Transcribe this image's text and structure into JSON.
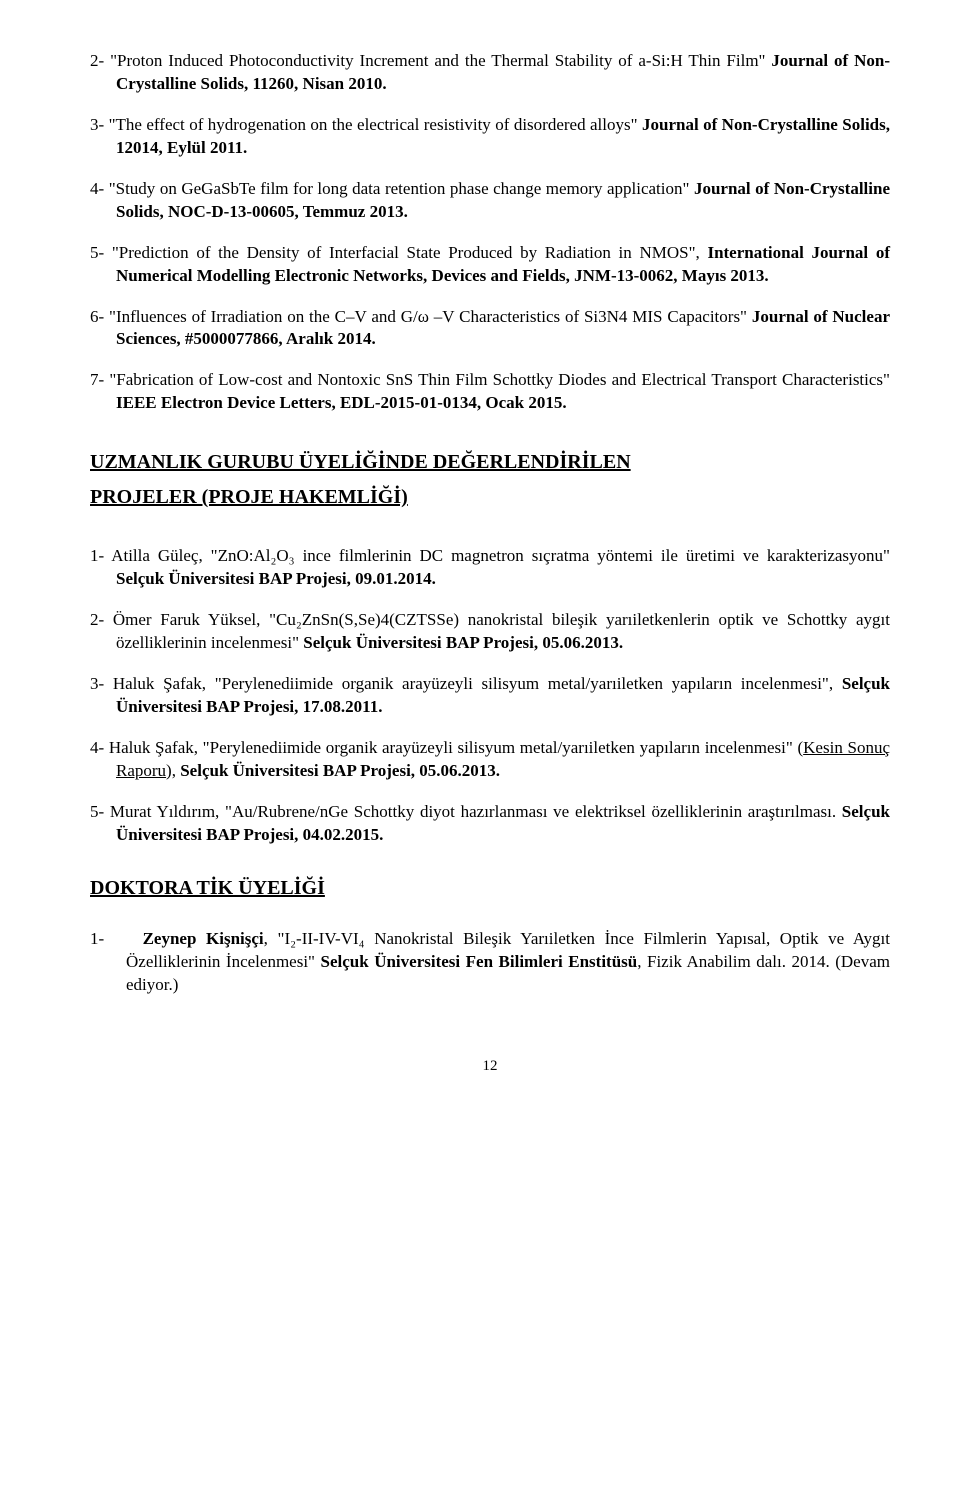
{
  "review_entries": [
    {
      "num": "2-",
      "pre": "\"Proton Induced Photoconductivity Increment and the Thermal Stability of a-Si:H Thin Film\" ",
      "bold": "Journal of Non-Crystalline Solids, 11260, Nisan 2010.",
      "post": ""
    },
    {
      "num": "3-",
      "pre": "\"The effect of hydrogenation on the electrical resistivity of disordered alloys\" ",
      "bold": "Journal of Non-Crystalline Solids, 12014, Eylül 2011.",
      "post": ""
    },
    {
      "num": "4-",
      "pre": "\"Study on GeGaSbTe film for long data retention phase change memory application\" ",
      "bold": "Journal of Non-Crystalline Solids, NOC-D-13-00605, Temmuz 2013.",
      "post": ""
    },
    {
      "num": "5-",
      "pre": "\"Prediction of the Density of Interfacial State Produced by Radiation in NMOS\", ",
      "bold": "International Journal of Numerical Modelling Electronic Networks, Devices and Fields, JNM-13-0062, Mayıs 2013.",
      "post": ""
    },
    {
      "num": "6-",
      "pre": "\"Influences of Irradiation on the C–V and G/ω –V Characteristics of Si3N4 MIS Capacitors\" ",
      "bold": "Journal of Nuclear Sciences, #5000077866, Aralık 2014.",
      "post": ""
    },
    {
      "num": "7-",
      "pre": "\"Fabrication of Low-cost and Nontoxic SnS Thin Film Schottky Diodes and Electrical Transport Characteristics\" ",
      "bold": "IEEE Electron Device Letters, EDL-2015-01-0134, Ocak 2015.",
      "post": ""
    }
  ],
  "heading1_line1": "UZMANLIK GURUBU ÜYELİĞİNDE DEĞERLENDİRİLEN",
  "heading1_line2": "PROJELER (PROJE  HAKEMLİĞİ)",
  "project_entries": [
    {
      "num": "1-",
      "pre": "Atilla Güleç, \"ZnO:Al₂O₃ ince filmlerinin DC magnetron sıçratma yöntemi ile üretimi ve karakterizasyonu\" ",
      "bold": "Selçuk Üniversitesi BAP Projesi, 09.01.2014.",
      "post": ""
    },
    {
      "num": "2-",
      "pre": "Ömer Faruk Yüksel, \"Cu₂ZnSn(S,Se)4(CZTSSe) nanokristal bileşik yarıiletkenlerin optik ve Schottky aygıt özelliklerinin incelenmesi\" ",
      "bold": "Selçuk Üniversitesi BAP Projesi, 05.06.2013.",
      "post": ""
    },
    {
      "num": "3-",
      "pre": "Haluk Şafak, \"Perylenediimide organik arayüzeyli silisyum metal/yarıiletken yapıların incelenmesi\", ",
      "bold": "Selçuk Üniversitesi BAP Projesi, 17.08.2011.",
      "post": ""
    },
    {
      "num": "4-",
      "pre": "Haluk Şafak, \"Perylenediimide organik arayüzeyli silisyum metal/yarıiletken yapıların incelenmesi\" (",
      "underline": "Kesin Sonuç Raporu",
      "mid": "), ",
      "bold": "Selçuk Üniversitesi BAP Projesi, 05.06.2013.",
      "post": ""
    },
    {
      "num": "5-",
      "pre": "Murat Yıldırım, \"Au/Rubrene/nGe Schottky diyot hazırlanması ve elektriksel özelliklerinin araştırılması. ",
      "bold": "Selçuk Üniversitesi BAP Projesi, 04.02.2015.",
      "post": ""
    }
  ],
  "heading2": "DOKTORA TİK ÜYELİĞİ",
  "doktora_entries": [
    {
      "num": "1-",
      "bold1": "Zeynep Kişnişçi",
      "pre": ", \"I₂-II-IV-VI₄ Nanokristal Bileşik Yarıiletken İnce Filmlerin Yapısal, Optik ve Aygıt Özelliklerinin İncelenmesi\" ",
      "bold2": "Selçuk Üniversitesi Fen Bilimleri Enstitüsü",
      "post": ", Fizik Anabilim dalı. 2014. (Devam ediyor.)"
    }
  ],
  "page_number": "12"
}
